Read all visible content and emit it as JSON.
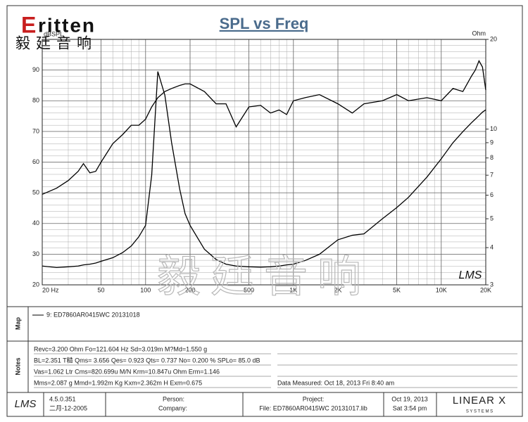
{
  "chart_data": {
    "type": "line",
    "title": "SPL vs Freq",
    "ylabel": "dBSPL",
    "y2label": "Ohm",
    "xlog": true,
    "y2log": true,
    "grid": true,
    "xlim": [
      20,
      20000
    ],
    "xticks": [
      {
        "value": 20,
        "label": "20 Hz"
      },
      50,
      100,
      200,
      500,
      {
        "value": 1000,
        "label": "1K"
      },
      {
        "value": 2000,
        "label": "2K"
      },
      {
        "value": 5000,
        "label": "5K"
      },
      {
        "value": 10000,
        "label": "10K"
      },
      {
        "value": 20000,
        "label": "20K"
      }
    ],
    "ylim": [
      20,
      100
    ],
    "yticks": [
      20,
      30,
      40,
      50,
      60,
      70,
      80,
      90
    ],
    "y2lim": [
      3,
      20
    ],
    "y2ticks": [
      3,
      4,
      5,
      6,
      7,
      8,
      9,
      10,
      20
    ],
    "x": [
      20,
      25,
      30,
      35,
      38,
      42,
      46,
      50,
      60,
      70,
      80,
      90,
      100,
      110,
      121,
      135,
      150,
      170,
      185,
      200,
      250,
      300,
      350,
      410,
      500,
      600,
      700,
      800,
      900,
      1000,
      1200,
      1500,
      2000,
      2500,
      3000,
      4000,
      5000,
      6000,
      8000,
      10000,
      12000,
      14000,
      16000,
      17000,
      18000,
      19000,
      20000
    ],
    "series": [
      {
        "color": "#000000",
        "values": [
          49.5,
          51.5,
          54,
          57,
          59.5,
          56.5,
          57,
          60,
          66,
          69,
          72,
          72,
          74,
          78,
          81,
          83,
          84,
          85,
          85.5,
          85.5,
          83,
          79,
          79,
          71.5,
          78,
          78.5,
          76,
          77,
          75.5,
          80,
          81,
          82,
          79,
          76,
          79,
          80,
          82,
          80,
          81,
          80,
          84,
          83,
          88,
          90,
          93,
          91,
          83.5
        ]
      },
      {
        "color": "#000000",
        "axis": "y2",
        "values": [
          3.47,
          3.43,
          3.45,
          3.47,
          3.5,
          3.52,
          3.55,
          3.6,
          3.7,
          3.85,
          4.05,
          4.35,
          4.75,
          7,
          15.6,
          13,
          9,
          6.3,
          5.2,
          4.75,
          3.95,
          3.65,
          3.52,
          3.47,
          3.45,
          3.44,
          3.45,
          3.47,
          3.5,
          3.52,
          3.62,
          3.8,
          4.25,
          4.4,
          4.45,
          5.0,
          5.45,
          5.9,
          6.9,
          7.95,
          9.0,
          9.8,
          10.5,
          10.8,
          11.1,
          11.4,
          11.6
        ]
      }
    ],
    "annotation": "LMS",
    "watermark": "毅廷音响"
  },
  "logo": {
    "brand": "ritten",
    "chinese": "毅廷音响"
  },
  "map": {
    "label": "Map",
    "entry": "9: ED7860AR0415WC  20131018"
  },
  "notes": {
    "label": "Notes",
    "left": [
      "Revc=3.200 Ohm  Fo=121.604 Hz  Sd=3.019m M?Md=1.550 g",
      "BL=2.351 T糙  Qms= 3.656  Qes= 0.923  Qts= 0.737  No= 0.200 %  SPLo= 85.0 dB",
      "Vas=1.062 Ltr  Cms=820.699u M/N  Krm=10.847u Ohm  Erm=1.146",
      "Mms=2.087 g  Mmd=1.992m Kg  Kxm=2.362m H  Exm=0.675"
    ],
    "measured": "Data Measured: Oct 18, 2013  Fri  8:40 am"
  },
  "footer": {
    "logo": "LMS",
    "version": "4.5.0.351",
    "build": "二月-12-2005",
    "person": "Person:",
    "company": "Company:",
    "project": "Project:",
    "file": "File: ED7860AR0415WC  20131017.lib",
    "date": "Oct 19, 2013",
    "time": "Sat  3:54 pm",
    "brand": "LINEAR X",
    "brand_sub": "S Y S T E M S"
  }
}
